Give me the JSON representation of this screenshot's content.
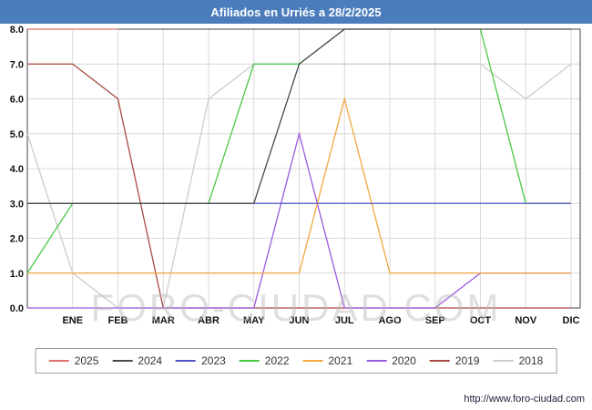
{
  "title_bar": {
    "text": "Afiliados en Urriés a 28/2/2025"
  },
  "watermark_text": "FORO-CIUDAD.COM",
  "footer": {
    "url_text": "http://www.foro-ciudad.com"
  },
  "chart_data": {
    "type": "line",
    "title": "Afiliados en Urriés a 28/2/2025",
    "x_categories": [
      "ENE",
      "FEB",
      "MAR",
      "ABR",
      "MAY",
      "JUN",
      "JUL",
      "AGO",
      "SEP",
      "OCT",
      "NOV",
      "DIC"
    ],
    "ylim": [
      0,
      8
    ],
    "ytick_labels": [
      "0.0",
      "1.0",
      "2.0",
      "3.0",
      "4.0",
      "5.0",
      "6.0",
      "7.0",
      "8.0"
    ],
    "grid": true,
    "legend_position": "bottom",
    "x_layout": "first value of each series is the left-edge point preceding ENE",
    "series": [
      {
        "name": "2025",
        "color": "#e0706a",
        "values": [
          8,
          8,
          8,
          null,
          null,
          null,
          null,
          null,
          null,
          null,
          null,
          null,
          null
        ]
      },
      {
        "name": "2024",
        "color": "#4a4a4a",
        "values": [
          3,
          3,
          3,
          3,
          3,
          3,
          7,
          8,
          8,
          8,
          8,
          8,
          8
        ]
      },
      {
        "name": "2023",
        "color": "#5055c8",
        "values": [
          3,
          3,
          3,
          3,
          3,
          3,
          3,
          3,
          3,
          3,
          3,
          3,
          3
        ]
      },
      {
        "name": "2022",
        "color": "#46c846",
        "values": [
          1,
          3,
          3,
          3,
          3,
          7,
          7,
          8,
          8,
          8,
          8,
          3,
          3
        ]
      },
      {
        "name": "2021",
        "color": "#f0a840",
        "values": [
          1,
          1,
          1,
          1,
          1,
          1,
          1,
          6,
          1,
          1,
          1,
          1,
          1
        ]
      },
      {
        "name": "2020",
        "color": "#9b59e0",
        "values": [
          0,
          0,
          0,
          0,
          0,
          0,
          5,
          0,
          0,
          0,
          1,
          1,
          1
        ]
      },
      {
        "name": "2019",
        "color": "#a94a42",
        "values": [
          7,
          7,
          6,
          0,
          0,
          0,
          0,
          0,
          0,
          0,
          0,
          0,
          0
        ]
      },
      {
        "name": "2018",
        "color": "#cccccc",
        "values": [
          5,
          1,
          0,
          0,
          6,
          7,
          7,
          7,
          7,
          7,
          7,
          6,
          7
        ]
      }
    ]
  }
}
